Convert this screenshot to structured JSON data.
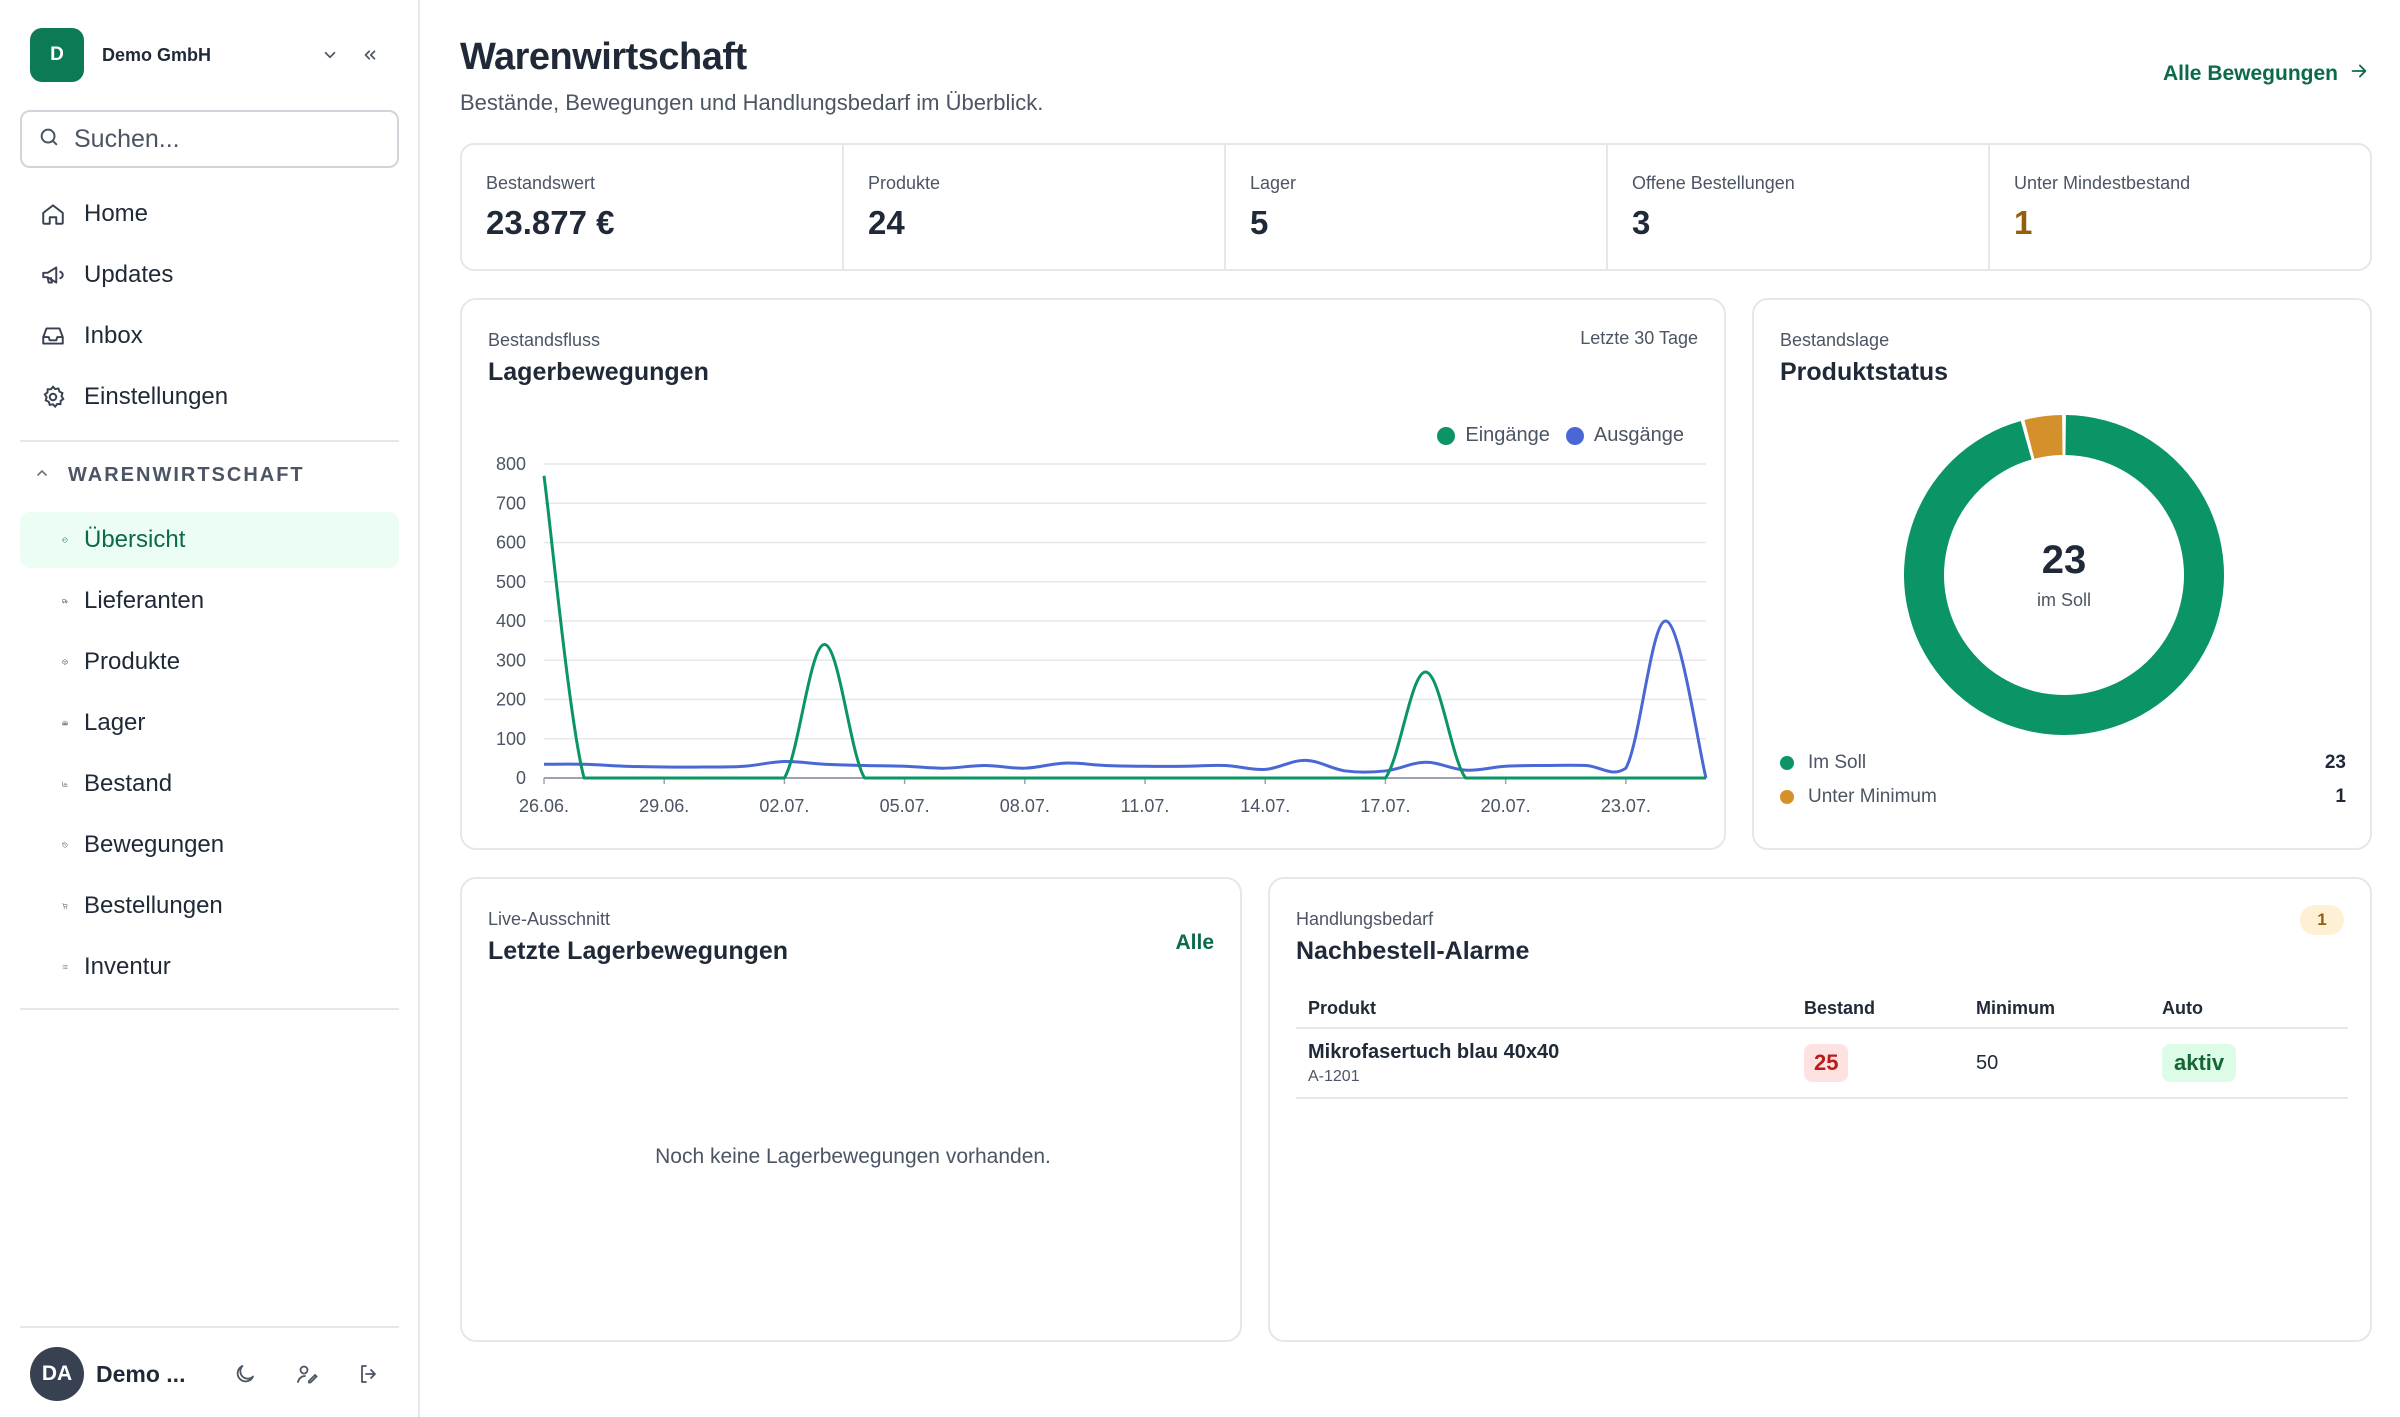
{
  "sidebar": {
    "brand": {
      "initial": "D",
      "name": "Demo GmbH"
    },
    "search_placeholder": "Suchen...",
    "main_nav": [
      {
        "label": "Home",
        "icon": "home-icon"
      },
      {
        "label": "Updates",
        "icon": "megaphone-icon"
      },
      {
        "label": "Inbox",
        "icon": "inbox-icon"
      },
      {
        "label": "Einstellungen",
        "icon": "gear-icon"
      }
    ],
    "section_title": "WARENWIRTSCHAFT",
    "section_nav": [
      {
        "label": "Übersicht",
        "icon": "gauge-icon",
        "active": true
      },
      {
        "label": "Lieferanten",
        "icon": "truck-icon"
      },
      {
        "label": "Produkte",
        "icon": "box-icon"
      },
      {
        "label": "Lager",
        "icon": "warehouse-icon"
      },
      {
        "label": "Bestand",
        "icon": "bar-chart-icon"
      },
      {
        "label": "Bewegungen",
        "icon": "history-icon"
      },
      {
        "label": "Bestellungen",
        "icon": "cart-icon"
      },
      {
        "label": "Inventur",
        "icon": "checklist-icon"
      }
    ],
    "user": {
      "initials": "DA",
      "name": "Demo ..."
    }
  },
  "header": {
    "title": "Warenwirtschaft",
    "subtitle": "Bestände, Bewegungen und Handlungsbedarf im Überblick.",
    "link_label": "Alle Bewegungen"
  },
  "stats": [
    {
      "label": "Bestandswert",
      "value": "23.877 €"
    },
    {
      "label": "Produkte",
      "value": "24"
    },
    {
      "label": "Lager",
      "value": "5"
    },
    {
      "label": "Offene Bestellungen",
      "value": "3"
    },
    {
      "label": "Unter Mindestbestand",
      "value": "1",
      "warn": true
    }
  ],
  "flow": {
    "kicker": "Bestandsfluss",
    "title": "Lagerbewegungen",
    "range": "Letzte 30 Tage"
  },
  "chart_data": {
    "type": "line",
    "x": [
      "26.06.",
      "27.06.",
      "28.06.",
      "29.06.",
      "30.06.",
      "01.07.",
      "02.07.",
      "03.07.",
      "04.07.",
      "05.07.",
      "06.07.",
      "07.07.",
      "08.07.",
      "09.07.",
      "10.07.",
      "11.07.",
      "12.07.",
      "13.07.",
      "14.07.",
      "15.07.",
      "16.07.",
      "17.07.",
      "18.07.",
      "19.07.",
      "20.07.",
      "21.07.",
      "22.07.",
      "23.07.",
      "24.07.",
      "25.07."
    ],
    "x_tick_labels": [
      "26.06.",
      "29.06.",
      "02.07.",
      "05.07.",
      "08.07.",
      "11.07.",
      "14.07.",
      "17.07.",
      "20.07.",
      "23.07."
    ],
    "series": [
      {
        "name": "Eingänge",
        "color": "#0b9466",
        "values": [
          770,
          0,
          0,
          0,
          0,
          0,
          0,
          340,
          0,
          0,
          0,
          0,
          0,
          0,
          0,
          0,
          0,
          0,
          0,
          0,
          0,
          0,
          270,
          0,
          0,
          0,
          0,
          0,
          0,
          0
        ]
      },
      {
        "name": "Ausgänge",
        "color": "#4a67d6",
        "values": [
          35,
          35,
          30,
          28,
          28,
          30,
          42,
          35,
          32,
          30,
          25,
          32,
          25,
          38,
          32,
          30,
          30,
          32,
          22,
          45,
          18,
          18,
          40,
          20,
          30,
          32,
          32,
          25,
          400,
          0
        ]
      }
    ],
    "yticks": [
      0,
      100,
      200,
      300,
      400,
      500,
      600,
      700,
      800
    ],
    "ylim": [
      0,
      800
    ],
    "grid": true,
    "legend": "top-right"
  },
  "status": {
    "kicker": "Bestandslage",
    "title": "Produktstatus",
    "center_value": "23",
    "center_label": "im Soll",
    "slices": [
      {
        "label": "Im Soll",
        "value": 23,
        "color": "#0b9466"
      },
      {
        "label": "Unter Minimum",
        "value": 1,
        "color": "#d4902a"
      }
    ]
  },
  "live": {
    "kicker": "Live-Ausschnitt",
    "title": "Letzte Lagerbewegungen",
    "link_label": "Alle",
    "empty_text": "Noch keine Lagerbewegungen vorhanden."
  },
  "alarms": {
    "kicker": "Handlungsbedarf",
    "title": "Nachbestell-Alarme",
    "count": "1",
    "columns": [
      "Produkt",
      "Bestand",
      "Minimum",
      "Auto"
    ],
    "rows": [
      {
        "name": "Mikrofasertuch blau 40x40",
        "sku": "A-1201",
        "stock": "25",
        "minimum": "50",
        "auto": "aktiv"
      }
    ]
  }
}
